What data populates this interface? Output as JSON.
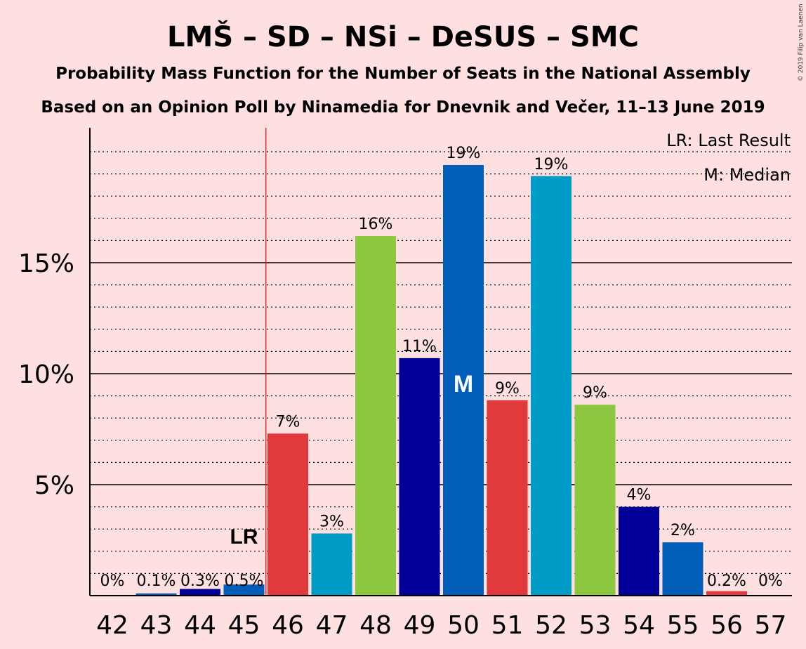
{
  "chart_data": {
    "type": "bar",
    "title": "LMŠ – SD – NSi – DeSUS – SMC",
    "subtitle1": "Probability Mass Function for the Number of Seats in the National Assembly",
    "subtitle2": "Based on an Opinion Poll by Ninamedia for Dnevnik and Večer, 11–13 June 2019",
    "copyright": "© 2019 Filip van Laenen",
    "legend": {
      "lr": "LR: Last Result",
      "m": "M: Median"
    },
    "categories": [
      "42",
      "43",
      "44",
      "45",
      "46",
      "47",
      "48",
      "49",
      "50",
      "51",
      "52",
      "53",
      "54",
      "55",
      "56",
      "57"
    ],
    "values": [
      0,
      0.1,
      0.3,
      0.5,
      7.3,
      2.8,
      16.2,
      10.7,
      19.4,
      8.8,
      18.9,
      8.6,
      4.0,
      2.4,
      0.2,
      0
    ],
    "labels": [
      "0%",
      "0.1%",
      "0.3%",
      "0.5%",
      "7%",
      "3%",
      "16%",
      "11%",
      "19%",
      "9%",
      "19%",
      "9%",
      "4%",
      "2%",
      "0.2%",
      "0%"
    ],
    "colors": [
      "#000099",
      "#005eb8",
      "#000099",
      "#005eb8",
      "#e1393c",
      "#009cc8",
      "#8dc63f",
      "#000099",
      "#005eb8",
      "#e1393c",
      "#009cc8",
      "#8dc63f",
      "#000099",
      "#005eb8",
      "#e1393c",
      "#009cc8"
    ],
    "last_result_index": 3,
    "last_result_marker": "LR",
    "median_index": 8,
    "median_marker": "M",
    "ylim": [
      0,
      21
    ],
    "yticks": [
      5,
      10,
      15
    ],
    "ytick_labels": [
      "5%",
      "10%",
      "15%"
    ],
    "minor_grid_step": 1,
    "grid": true,
    "legend_position": "top-right"
  }
}
